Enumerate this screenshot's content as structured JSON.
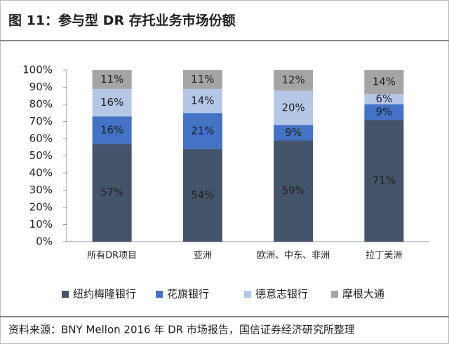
{
  "chart_data": {
    "type": "stacked_bar",
    "title": "图 11：参与型 DR 存托业务市场份额",
    "source": "资料来源：BNY Mellon 2016 年 DR 市场报告，国信证券经济研究所整理",
    "categories": [
      "所有DR项目",
      "亚洲",
      "欧洲、中东、非洲",
      "拉丁美洲"
    ],
    "series": [
      {
        "name": "纽约梅隆银行",
        "color": "#44546a",
        "values": [
          57,
          54,
          59,
          71
        ],
        "value_labels": [
          "57%",
          "54%",
          "59%",
          "71%"
        ]
      },
      {
        "name": "花旗银行",
        "color": "#4472c4",
        "values": [
          16,
          21,
          9,
          9
        ],
        "value_labels": [
          "16%",
          "21%",
          "9%",
          "9%"
        ]
      },
      {
        "name": "德意志银行",
        "color": "#b4c7e7",
        "values": [
          16,
          14,
          20,
          6
        ],
        "value_labels": [
          "16%",
          "14%",
          "20%",
          "6%"
        ]
      },
      {
        "name": "摩根大通",
        "color": "#a5a5a5",
        "values": [
          11,
          11,
          12,
          14
        ],
        "value_labels": [
          "11%",
          "11%",
          "12%",
          "14%"
        ]
      }
    ],
    "ylim": [
      0,
      100
    ],
    "yticks": [
      {
        "value": 0,
        "label": "0%"
      },
      {
        "value": 10,
        "label": "10%"
      },
      {
        "value": 20,
        "label": "20%"
      },
      {
        "value": 30,
        "label": "30%"
      },
      {
        "value": 40,
        "label": "40%"
      },
      {
        "value": 50,
        "label": "50%"
      },
      {
        "value": 60,
        "label": "60%"
      },
      {
        "value": 70,
        "label": "70%"
      },
      {
        "value": 80,
        "label": "80%"
      },
      {
        "value": 90,
        "label": "90%"
      },
      {
        "value": 100,
        "label": "100%"
      }
    ],
    "grid": false,
    "legend": "bottom"
  }
}
